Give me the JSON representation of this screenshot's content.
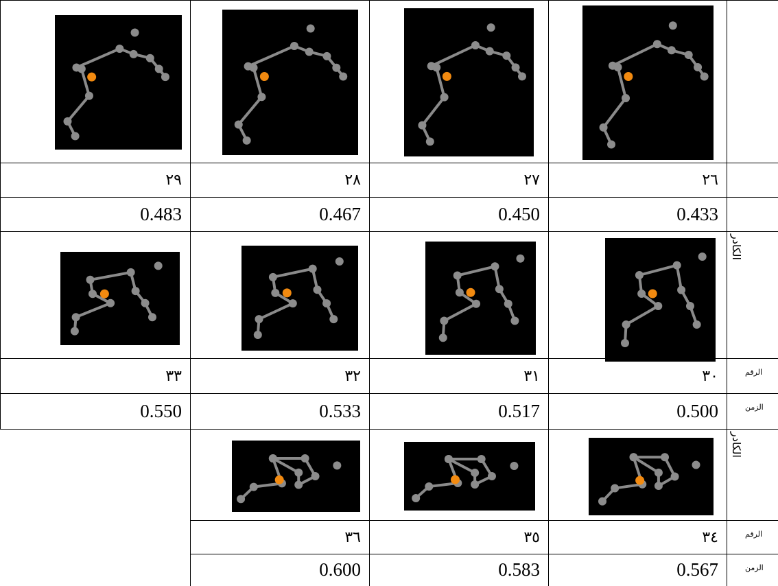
{
  "table": {
    "label_frame_image": "الكادر",
    "label_frame_number": "الرقم",
    "label_time": "الزمن",
    "blocks": [
      {
        "frames": [
          "٢٩",
          "٢٨",
          "٢٧",
          "٢٦"
        ],
        "times": [
          "0.483",
          "0.467",
          "0.450",
          "0.433"
        ]
      },
      {
        "frames": [
          "٣٣",
          "٣٢",
          "٣١",
          "٣٠"
        ],
        "times": [
          "0.550",
          "0.533",
          "0.517",
          "0.500"
        ]
      },
      {
        "frames": [
          "٣٦",
          "٣٥",
          "٣٤"
        ],
        "times": [
          "0.600",
          "0.583",
          "0.567"
        ]
      }
    ]
  }
}
